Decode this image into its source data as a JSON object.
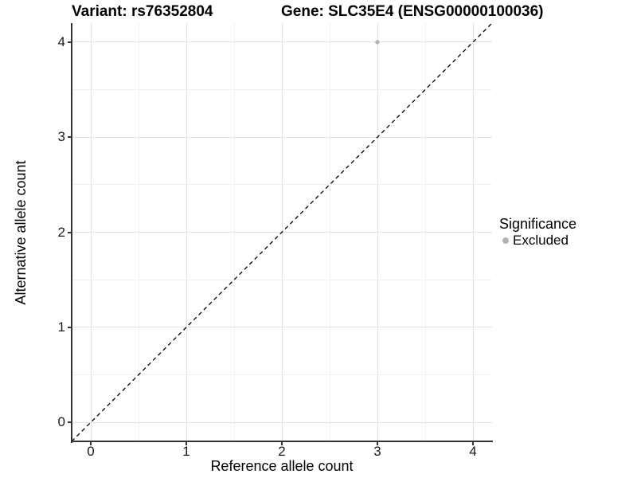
{
  "header": {
    "title_variant": "Variant: rs76352804",
    "title_gene": "Gene: SLC35E4 (ENSG00000100036)"
  },
  "chart_data": {
    "type": "scatter",
    "titles": [
      "Variant: rs76352804",
      "Gene: SLC35E4 (ENSG00000100036)"
    ],
    "xlabel": "Reference allele count",
    "ylabel": "Alternative allele count",
    "xlim": [
      -0.2,
      4.2
    ],
    "ylim": [
      -0.2,
      4.2
    ],
    "x_ticks": [
      0,
      1,
      2,
      3,
      4
    ],
    "y_ticks": [
      0,
      1,
      2,
      3,
      4
    ],
    "x_minor_ticks": [
      0.5,
      1.5,
      2.5,
      3.5
    ],
    "y_minor_ticks": [
      0.5,
      1.5,
      2.5,
      3.5
    ],
    "grid": "major and minor gridlines on white background",
    "series": [
      {
        "name": "Excluded",
        "color": "#b3b3b3",
        "marker": "circle",
        "points": [
          {
            "x": 3,
            "y": 4
          }
        ]
      }
    ],
    "reference_line": {
      "kind": "identity y=x",
      "x1": -0.2,
      "y1": -0.2,
      "x2": 4.2,
      "y2": 4.2,
      "style": "dashed",
      "color": "#000000"
    },
    "legend": {
      "title": "Significance",
      "position": "right-middle",
      "items": [
        {
          "label": "Excluded",
          "color": "#b3b3b3"
        }
      ]
    }
  },
  "colors": {
    "background": "#ffffff",
    "grid_major": "#e2e2e2",
    "grid_minor": "#f0f0f0",
    "axis_line": "#333333",
    "tick_label": "#1a1a1a",
    "point": "#b3b3b3"
  }
}
